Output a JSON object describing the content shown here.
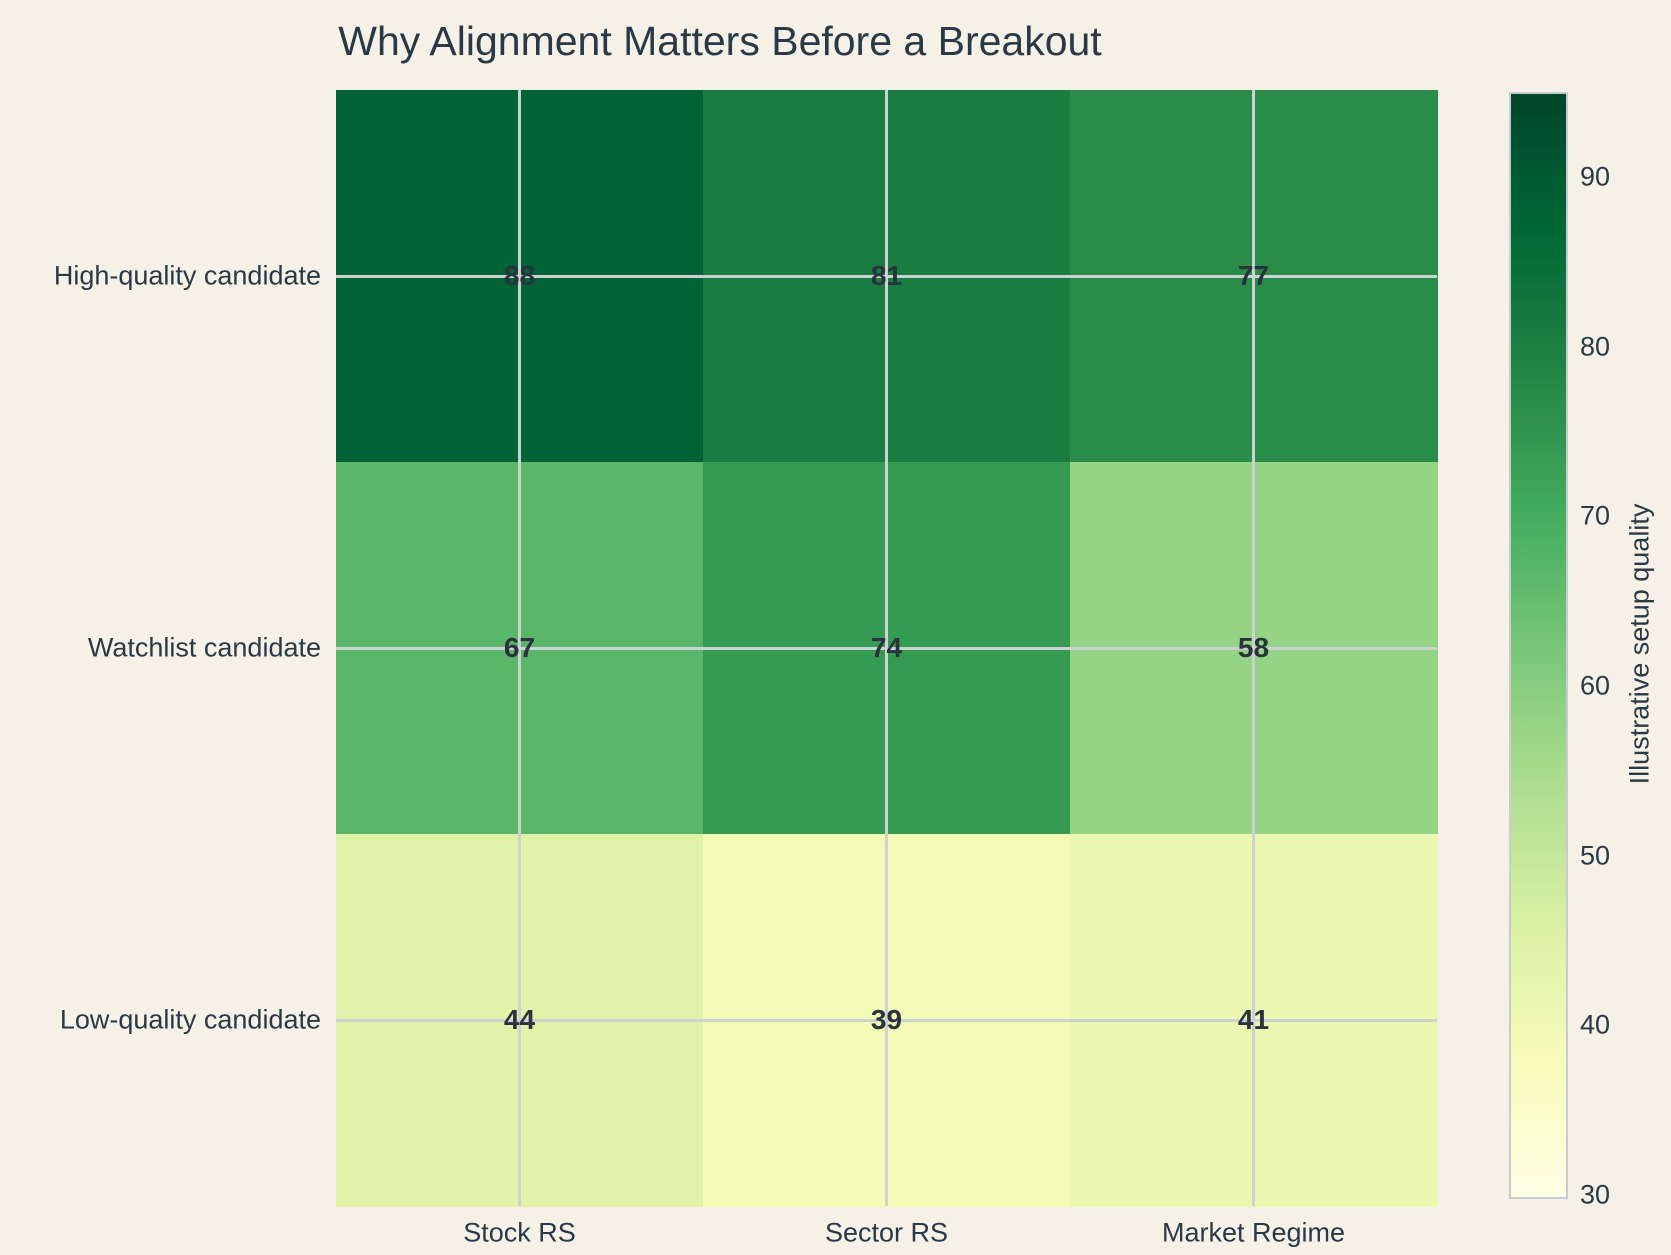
{
  "title": "Why Alignment Matters Before a Breakout",
  "colors": {
    "background": "#f5f1e6",
    "text": "#2a3947",
    "value_text": "#2a323e",
    "gridline": "#ccd2d4",
    "colorbar_border": "#c6cccf"
  },
  "chart_data": {
    "type": "heatmap",
    "title": "Why Alignment Matters Before a Breakout",
    "x_categories": [
      "Stock RS",
      "Sector RS",
      "Market Regime"
    ],
    "y_categories": [
      "High-quality candidate",
      "Watchlist candidate",
      "Low-quality candidate"
    ],
    "values": [
      [
        88,
        81,
        77
      ],
      [
        67,
        74,
        58
      ],
      [
        44,
        39,
        41
      ]
    ],
    "value_range": [
      30,
      95
    ],
    "grid": true,
    "colormap": {
      "name": "YlGn",
      "stops": [
        {
          "pos": 0.0,
          "color": "#ffffe5"
        },
        {
          "pos": 0.125,
          "color": "#f7fcb9"
        },
        {
          "pos": 0.25,
          "color": "#d9f0a3"
        },
        {
          "pos": 0.375,
          "color": "#addd8e"
        },
        {
          "pos": 0.5,
          "color": "#78c679"
        },
        {
          "pos": 0.625,
          "color": "#41ab5d"
        },
        {
          "pos": 0.75,
          "color": "#238443"
        },
        {
          "pos": 0.875,
          "color": "#006837"
        },
        {
          "pos": 1.0,
          "color": "#004529"
        }
      ]
    },
    "colorbar": {
      "title": "Illustrative setup quality",
      "ticks": [
        30,
        40,
        50,
        60,
        70,
        80,
        90
      ],
      "range": [
        30,
        95
      ],
      "position": "right"
    }
  }
}
